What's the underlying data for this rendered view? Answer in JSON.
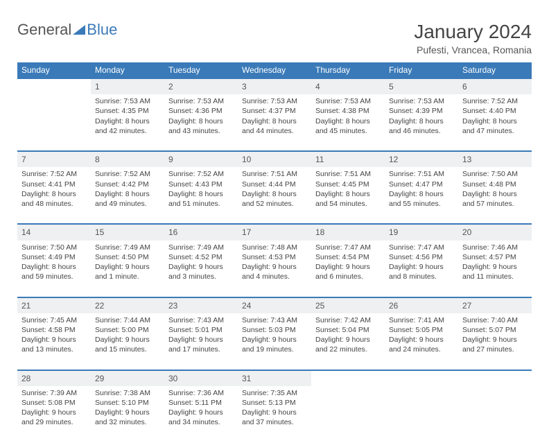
{
  "logo": {
    "general": "General",
    "blue": "Blue"
  },
  "title": "January 2024",
  "location": "Pufesti, Vrancea, Romania",
  "colors": {
    "header_bg": "#3a7ab8",
    "header_text": "#ffffff",
    "daynum_bg": "#eef0f2",
    "border": "#3a7ab8",
    "page_bg": "#ffffff",
    "text": "#444444"
  },
  "weekdays": [
    "Sunday",
    "Monday",
    "Tuesday",
    "Wednesday",
    "Thursday",
    "Friday",
    "Saturday"
  ],
  "weeks": [
    {
      "nums": [
        "",
        "1",
        "2",
        "3",
        "4",
        "5",
        "6"
      ],
      "cells": [
        null,
        {
          "sunrise": "7:53 AM",
          "sunset": "4:35 PM",
          "daylight": "8 hours and 42 minutes."
        },
        {
          "sunrise": "7:53 AM",
          "sunset": "4:36 PM",
          "daylight": "8 hours and 43 minutes."
        },
        {
          "sunrise": "7:53 AM",
          "sunset": "4:37 PM",
          "daylight": "8 hours and 44 minutes."
        },
        {
          "sunrise": "7:53 AM",
          "sunset": "4:38 PM",
          "daylight": "8 hours and 45 minutes."
        },
        {
          "sunrise": "7:53 AM",
          "sunset": "4:39 PM",
          "daylight": "8 hours and 46 minutes."
        },
        {
          "sunrise": "7:52 AM",
          "sunset": "4:40 PM",
          "daylight": "8 hours and 47 minutes."
        }
      ]
    },
    {
      "nums": [
        "7",
        "8",
        "9",
        "10",
        "11",
        "12",
        "13"
      ],
      "cells": [
        {
          "sunrise": "7:52 AM",
          "sunset": "4:41 PM",
          "daylight": "8 hours and 48 minutes."
        },
        {
          "sunrise": "7:52 AM",
          "sunset": "4:42 PM",
          "daylight": "8 hours and 49 minutes."
        },
        {
          "sunrise": "7:52 AM",
          "sunset": "4:43 PM",
          "daylight": "8 hours and 51 minutes."
        },
        {
          "sunrise": "7:51 AM",
          "sunset": "4:44 PM",
          "daylight": "8 hours and 52 minutes."
        },
        {
          "sunrise": "7:51 AM",
          "sunset": "4:45 PM",
          "daylight": "8 hours and 54 minutes."
        },
        {
          "sunrise": "7:51 AM",
          "sunset": "4:47 PM",
          "daylight": "8 hours and 55 minutes."
        },
        {
          "sunrise": "7:50 AM",
          "sunset": "4:48 PM",
          "daylight": "8 hours and 57 minutes."
        }
      ]
    },
    {
      "nums": [
        "14",
        "15",
        "16",
        "17",
        "18",
        "19",
        "20"
      ],
      "cells": [
        {
          "sunrise": "7:50 AM",
          "sunset": "4:49 PM",
          "daylight": "8 hours and 59 minutes."
        },
        {
          "sunrise": "7:49 AM",
          "sunset": "4:50 PM",
          "daylight": "9 hours and 1 minute."
        },
        {
          "sunrise": "7:49 AM",
          "sunset": "4:52 PM",
          "daylight": "9 hours and 3 minutes."
        },
        {
          "sunrise": "7:48 AM",
          "sunset": "4:53 PM",
          "daylight": "9 hours and 4 minutes."
        },
        {
          "sunrise": "7:47 AM",
          "sunset": "4:54 PM",
          "daylight": "9 hours and 6 minutes."
        },
        {
          "sunrise": "7:47 AM",
          "sunset": "4:56 PM",
          "daylight": "9 hours and 8 minutes."
        },
        {
          "sunrise": "7:46 AM",
          "sunset": "4:57 PM",
          "daylight": "9 hours and 11 minutes."
        }
      ]
    },
    {
      "nums": [
        "21",
        "22",
        "23",
        "24",
        "25",
        "26",
        "27"
      ],
      "cells": [
        {
          "sunrise": "7:45 AM",
          "sunset": "4:58 PM",
          "daylight": "9 hours and 13 minutes."
        },
        {
          "sunrise": "7:44 AM",
          "sunset": "5:00 PM",
          "daylight": "9 hours and 15 minutes."
        },
        {
          "sunrise": "7:43 AM",
          "sunset": "5:01 PM",
          "daylight": "9 hours and 17 minutes."
        },
        {
          "sunrise": "7:43 AM",
          "sunset": "5:03 PM",
          "daylight": "9 hours and 19 minutes."
        },
        {
          "sunrise": "7:42 AM",
          "sunset": "5:04 PM",
          "daylight": "9 hours and 22 minutes."
        },
        {
          "sunrise": "7:41 AM",
          "sunset": "5:05 PM",
          "daylight": "9 hours and 24 minutes."
        },
        {
          "sunrise": "7:40 AM",
          "sunset": "5:07 PM",
          "daylight": "9 hours and 27 minutes."
        }
      ]
    },
    {
      "nums": [
        "28",
        "29",
        "30",
        "31",
        "",
        "",
        ""
      ],
      "cells": [
        {
          "sunrise": "7:39 AM",
          "sunset": "5:08 PM",
          "daylight": "9 hours and 29 minutes."
        },
        {
          "sunrise": "7:38 AM",
          "sunset": "5:10 PM",
          "daylight": "9 hours and 32 minutes."
        },
        {
          "sunrise": "7:36 AM",
          "sunset": "5:11 PM",
          "daylight": "9 hours and 34 minutes."
        },
        {
          "sunrise": "7:35 AM",
          "sunset": "5:13 PM",
          "daylight": "9 hours and 37 minutes."
        },
        null,
        null,
        null
      ]
    }
  ],
  "labels": {
    "sunrise": "Sunrise:",
    "sunset": "Sunset:",
    "daylight": "Daylight:"
  }
}
